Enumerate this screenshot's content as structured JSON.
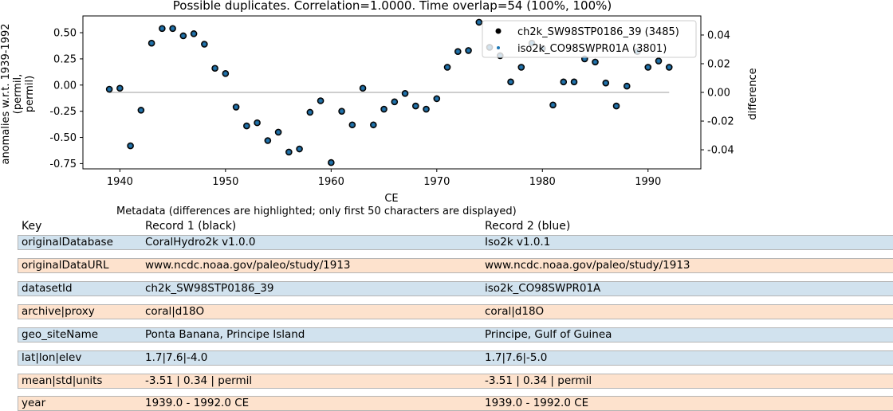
{
  "chart_data": {
    "type": "scatter",
    "title": "Possible duplicates. Correlation=1.0000. Time overlap=54 (100%, 100%)",
    "xlabel": "CE",
    "ylabel": "anomalies w.r.t. 1939-1992 (permil, permil)",
    "ylabel_lines": [
      "anomalies w.r.t. 1939-1992",
      "(permil,",
      "permil)"
    ],
    "y2label": "difference",
    "xlim": [
      1936.5,
      1995
    ],
    "ylim": [
      -0.8,
      0.66
    ],
    "y2lim": [
      -0.0533,
      0.0533
    ],
    "xticks": [
      "1940",
      "1950",
      "1960",
      "1970",
      "1980",
      "1990"
    ],
    "yticks": [
      "0.50",
      "0.25",
      "0.00",
      "-0.25",
      "-0.50",
      "-0.75"
    ],
    "y2ticks": [
      "0.04",
      "0.02",
      "0.00",
      "-0.02",
      "-0.04"
    ],
    "legend_position": "top-right",
    "series": [
      {
        "name": "ch2k_SW98STP0186_39 (3485)",
        "color": "#000000",
        "x": [
          1939,
          1940,
          1941,
          1942,
          1943,
          1944,
          1945,
          1946,
          1947,
          1948,
          1949,
          1950,
          1951,
          1952,
          1953,
          1954,
          1955,
          1956,
          1957,
          1958,
          1959,
          1960,
          1961,
          1962,
          1963,
          1964,
          1965,
          1966,
          1967,
          1968,
          1969,
          1970,
          1971,
          1972,
          1973,
          1974,
          1975,
          1976,
          1977,
          1978,
          1979,
          1980,
          1981,
          1982,
          1983,
          1984,
          1985,
          1986,
          1987,
          1988,
          1989,
          1990,
          1991,
          1992
        ],
        "y": [
          -0.04,
          -0.03,
          -0.58,
          -0.24,
          0.4,
          0.54,
          0.54,
          0.47,
          0.49,
          0.39,
          0.16,
          0.11,
          -0.21,
          -0.39,
          -0.36,
          -0.53,
          -0.45,
          -0.64,
          -0.61,
          -0.26,
          -0.15,
          -0.74,
          -0.25,
          -0.38,
          -0.03,
          -0.38,
          -0.23,
          -0.16,
          -0.08,
          -0.2,
          -0.23,
          -0.13,
          0.17,
          0.32,
          0.33,
          0.6,
          0.36,
          0.28,
          0.03,
          0.17,
          0.4,
          0.35,
          -0.19,
          0.03,
          0.03,
          0.25,
          0.22,
          0.02,
          -0.2,
          -0.01,
          0.32,
          0.17,
          0.23,
          0.17
        ]
      },
      {
        "name": "iso2k_CO98SWPR01A (3801)",
        "color": "#1f77b4",
        "x": [
          1939,
          1940,
          1941,
          1942,
          1943,
          1944,
          1945,
          1946,
          1947,
          1948,
          1949,
          1950,
          1951,
          1952,
          1953,
          1954,
          1955,
          1956,
          1957,
          1958,
          1959,
          1960,
          1961,
          1962,
          1963,
          1964,
          1965,
          1966,
          1967,
          1968,
          1969,
          1970,
          1971,
          1972,
          1973,
          1974,
          1975,
          1976,
          1977,
          1978,
          1979,
          1980,
          1981,
          1982,
          1983,
          1984,
          1985,
          1986,
          1987,
          1988,
          1989,
          1990,
          1991,
          1992
        ],
        "y": [
          -0.04,
          -0.03,
          -0.58,
          -0.24,
          0.4,
          0.54,
          0.54,
          0.47,
          0.49,
          0.39,
          0.16,
          0.11,
          -0.21,
          -0.39,
          -0.36,
          -0.53,
          -0.45,
          -0.64,
          -0.61,
          -0.26,
          -0.15,
          -0.74,
          -0.25,
          -0.38,
          -0.03,
          -0.38,
          -0.23,
          -0.16,
          -0.08,
          -0.2,
          -0.23,
          -0.13,
          0.17,
          0.32,
          0.33,
          0.6,
          0.36,
          0.28,
          0.03,
          0.17,
          0.4,
          0.35,
          -0.19,
          0.03,
          0.03,
          0.25,
          0.22,
          0.02,
          -0.2,
          -0.01,
          0.32,
          0.17,
          0.23,
          0.17
        ]
      }
    ],
    "difference_line": {
      "x": [
        1939,
        1992
      ],
      "y": [
        0.0,
        0.0
      ],
      "color": "#bdbdbd"
    }
  },
  "metadata": {
    "title": "Metadata (differences are highlighted; only first 50 characters are displayed)",
    "headers": {
      "key": "Key",
      "record1": "Record 1 (black)",
      "record2": "Record 2 (blue)"
    },
    "colors": {
      "row_blue": "#d1e2ee",
      "row_orange": "#fde2cd",
      "border": "#b4b4b4"
    },
    "rows": [
      {
        "key": "originalDatabase",
        "r1": "CoralHydro2k v1.0.0",
        "r2": "Iso2k v1.0.1",
        "style": "blue"
      },
      {
        "key": "originalDataURL",
        "r1": "www.ncdc.noaa.gov/paleo/study/1913",
        "r2": "www.ncdc.noaa.gov/paleo/study/1913",
        "style": "orange"
      },
      {
        "key": "datasetId",
        "r1": "ch2k_SW98STP0186_39",
        "r2": "iso2k_CO98SWPR01A",
        "style": "blue"
      },
      {
        "key": "archive|proxy",
        "r1": "coral|d18O",
        "r2": "coral|d18O",
        "style": "orange"
      },
      {
        "key": "geo_siteName",
        "r1": "Ponta Banana, Principe Island",
        "r2": "Principe, Gulf of Guinea",
        "style": "blue"
      },
      {
        "key": "lat|lon|elev",
        "r1": "1.7|7.6|-4.0",
        "r2": "1.7|7.6|-5.0",
        "style": "blue"
      },
      {
        "key": "mean|std|units",
        "r1": "-3.51 | 0.34 | permil",
        "r2": "-3.51 | 0.34 | permil",
        "style": "orange"
      },
      {
        "key": "year",
        "r1": "1939.0 - 1992.0 CE",
        "r2": "1939.0 - 1992.0 CE",
        "style": "orange"
      }
    ]
  }
}
